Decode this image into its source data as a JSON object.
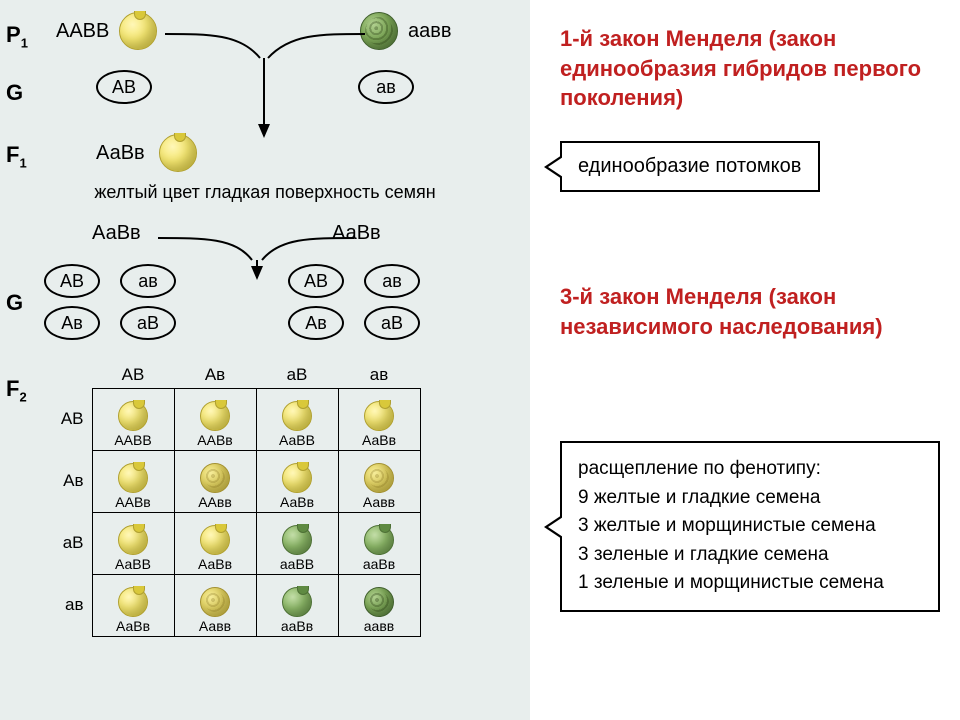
{
  "colors": {
    "background_left": "#e8eeed",
    "background_right": "#ffffff",
    "text": "#000000",
    "law_title": "#c02020",
    "border": "#000000"
  },
  "labels": {
    "P1": "P",
    "P1_sub": "1",
    "G": "G",
    "F1": "F",
    "F1_sub": "1",
    "F2": "F",
    "F2_sub": "2"
  },
  "p1": {
    "left_geno": "ААВВ",
    "left_pheno": "yellow-smooth",
    "right_geno": "аавв",
    "right_pheno": "green-wrinkled"
  },
  "g_p1": {
    "left": "АВ",
    "right": "ав"
  },
  "f1": {
    "geno": "АаВв",
    "pheno": "yellow-smooth",
    "caption": "желтый цвет гладкая поверхность семян"
  },
  "f1_cross": {
    "left_geno": "АаВв",
    "right_geno": "АаВв"
  },
  "g_f1": {
    "left": [
      "АВ",
      "ав",
      "Ав",
      "аВ"
    ],
    "right": [
      "АВ",
      "ав",
      "Ав",
      "аВ"
    ]
  },
  "punnett": {
    "col_headers": [
      "АВ",
      "Ав",
      "аВ",
      "ав"
    ],
    "row_headers": [
      "АВ",
      "Ав",
      "аВ",
      "ав"
    ],
    "cells": [
      [
        {
          "g": "ААВВ",
          "p": "yellow-smooth"
        },
        {
          "g": "ААВв",
          "p": "yellow-smooth"
        },
        {
          "g": "АаВВ",
          "p": "yellow-smooth"
        },
        {
          "g": "АаВв",
          "p": "yellow-smooth"
        }
      ],
      [
        {
          "g": "ААВв",
          "p": "yellow-smooth"
        },
        {
          "g": "ААвв",
          "p": "yellow-wrinkled"
        },
        {
          "g": "АаВв",
          "p": "yellow-smooth"
        },
        {
          "g": "Аавв",
          "p": "yellow-wrinkled"
        }
      ],
      [
        {
          "g": "АаВВ",
          "p": "yellow-smooth"
        },
        {
          "g": "АаВв",
          "p": "yellow-smooth"
        },
        {
          "g": "ааВВ",
          "p": "green-smooth"
        },
        {
          "g": "ааВв",
          "p": "green-smooth"
        }
      ],
      [
        {
          "g": "АаВв",
          "p": "yellow-smooth"
        },
        {
          "g": "Аавв",
          "p": "yellow-wrinkled"
        },
        {
          "g": "ааВв",
          "p": "green-smooth"
        },
        {
          "g": "аавв",
          "p": "green-wrinkled"
        }
      ]
    ]
  },
  "law1": {
    "title": "1-й закон Менделя (закон единообразия гибридов первого поколения)",
    "callout": "единообразие потомков"
  },
  "law3": {
    "title": "3-й закон Менделя (закон независимого наследования)",
    "callout_heading": "расщепление по фенотипу:",
    "ratios": [
      "9 желтые и гладкие семена",
      "3 желтые и морщинистые семена",
      "3 зеленые и гладкие семена",
      "1 зеленые и морщинистые семена"
    ]
  }
}
